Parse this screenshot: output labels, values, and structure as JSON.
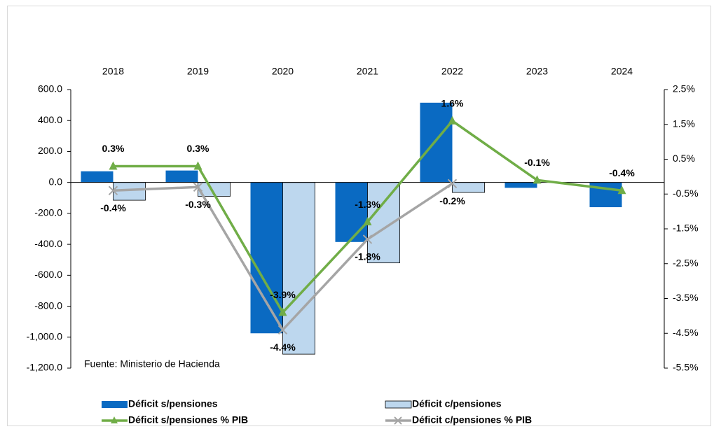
{
  "chart_data": {
    "type": "bar_line",
    "source": "Fuente: Ministerio de Hacienda",
    "categories": [
      "2018",
      "2019",
      "2020",
      "2021",
      "2022",
      "2023",
      "2024"
    ],
    "series": [
      {
        "name": "Déficit s/pensiones",
        "type": "bar",
        "color": "#0a6ac2",
        "values": [
          72,
          77,
          -975,
          -385,
          515,
          -35,
          -160
        ]
      },
      {
        "name": "Déficit c/pensiones",
        "type": "bar",
        "color": "#bdd7ee",
        "values": [
          -115,
          -90,
          -1110,
          -520,
          -65,
          null,
          null
        ]
      },
      {
        "name": "Déficit  s/pensiones % PIB",
        "type": "line",
        "axis": "y2",
        "color": "#70ad47",
        "marker": "triangle",
        "values": [
          0.3,
          0.3,
          -3.9,
          -1.3,
          1.6,
          -0.1,
          -0.4
        ],
        "value_labels": [
          "0.3%",
          "0.3%",
          "-3.9%",
          "-1.3%",
          "1.6%",
          "-0.1%",
          "-0.4%"
        ]
      },
      {
        "name": "Déficit  c/pensiones % PIB",
        "type": "line",
        "axis": "y2",
        "color": "#a5a5a5",
        "marker": "x",
        "values": [
          -0.4,
          -0.3,
          -4.4,
          -1.8,
          -0.2,
          null,
          null
        ],
        "value_labels": [
          "-0.4%",
          "-0.3%",
          "-4.4%",
          "-1.8%",
          "-0.2%",
          null,
          null
        ]
      }
    ],
    "ylim": [
      -1200,
      600
    ],
    "yticks": [
      {
        "value": -1200,
        "label": "-1,200.0"
      },
      {
        "value": -1000,
        "label": "-1,000.0"
      },
      {
        "value": -800,
        "label": "-800.0"
      },
      {
        "value": -600,
        "label": "-600.0"
      },
      {
        "value": -400,
        "label": "-400.0"
      },
      {
        "value": -200,
        "label": "-200.0"
      },
      {
        "value": 0,
        "label": "0.0"
      },
      {
        "value": 200,
        "label": "200.0"
      },
      {
        "value": 400,
        "label": "400.0"
      },
      {
        "value": 600,
        "label": "600.0"
      }
    ],
    "y2lim": [
      -5.5,
      2.5
    ],
    "y2ticks": [
      {
        "value": -5.5,
        "label": "-5.5%"
      },
      {
        "value": -4.5,
        "label": "-4.5%"
      },
      {
        "value": -3.5,
        "label": "-3.5%"
      },
      {
        "value": -2.5,
        "label": "-2.5%"
      },
      {
        "value": -1.5,
        "label": "-1.5%"
      },
      {
        "value": -0.5,
        "label": "-0.5%"
      },
      {
        "value": 0.5,
        "label": "0.5%"
      },
      {
        "value": 1.5,
        "label": "1.5%"
      },
      {
        "value": 2.5,
        "label": "2.5%"
      }
    ]
  }
}
